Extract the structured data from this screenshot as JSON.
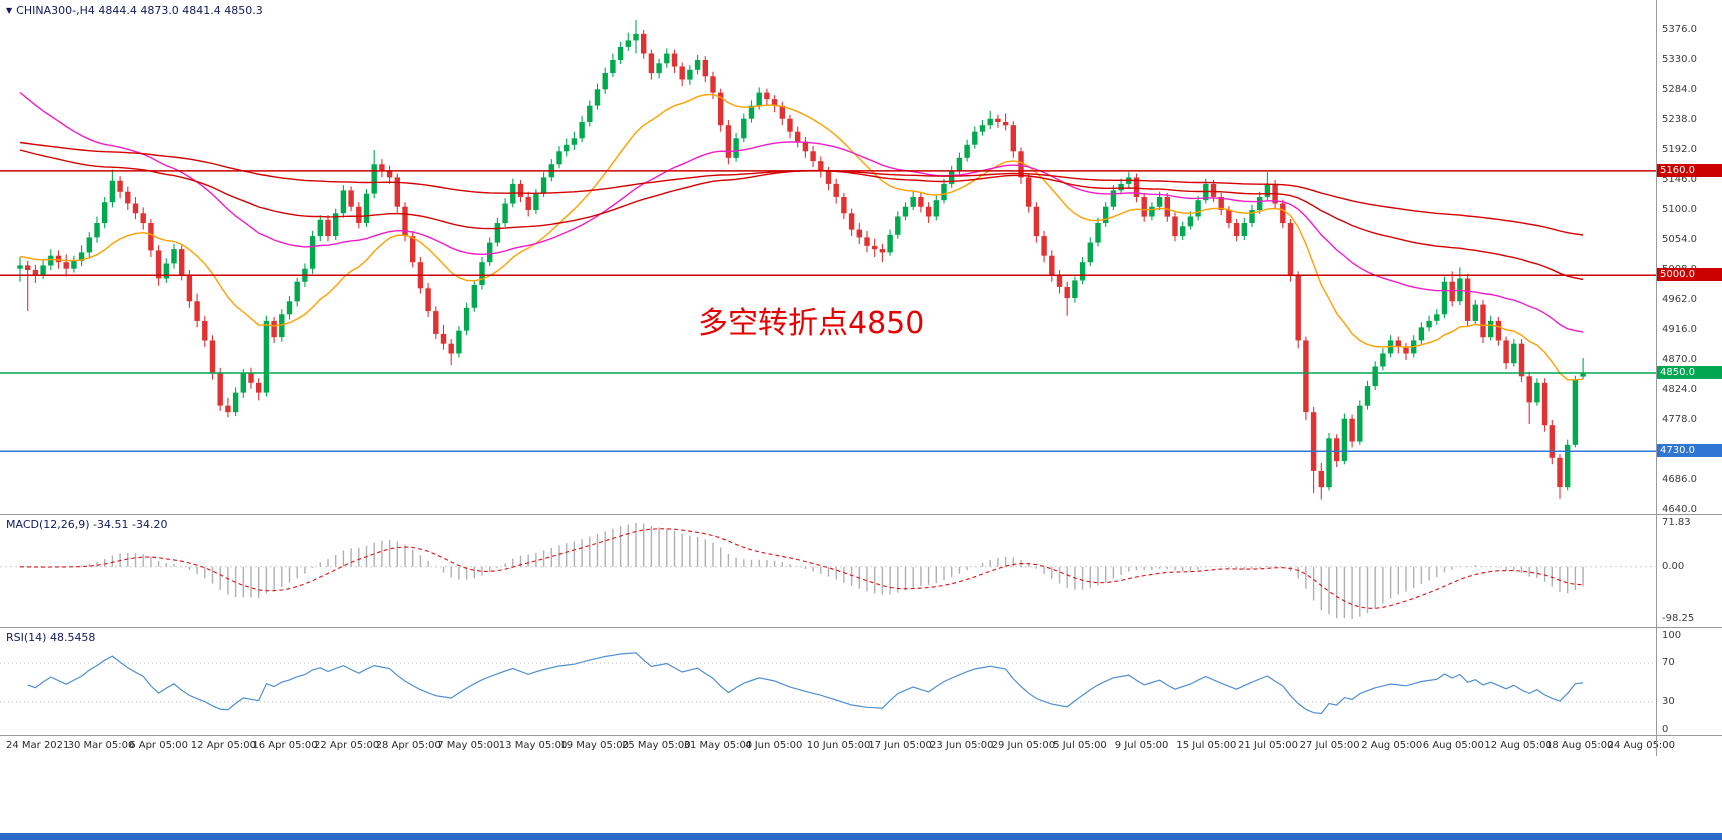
{
  "window": {
    "bottom_bar_color": "#2b6cc9"
  },
  "chart_data": {
    "type": "candlestick",
    "symbol": "CHINA300-",
    "timeframe": "H4",
    "title_line": "CHINA300-,H4 4844.4 4873.0 4841.4 4850.3",
    "current_bar": {
      "open": 4844.4,
      "high": 4873.0,
      "low": 4841.4,
      "close": 4850.3
    },
    "annotation": {
      "text": "多空转折点4850",
      "color": "#e60000"
    },
    "y_axis": {
      "min": 4640,
      "max": 5376,
      "step": 46,
      "labels": [
        "5376.0",
        "5330.0",
        "5284.0",
        "5238.0",
        "5192.0",
        "5146.0",
        "5100.0",
        "5054.0",
        "5008.0",
        "4962.0",
        "4916.0",
        "4870.0",
        "4824.0",
        "4778.0",
        "4732.0",
        "4686.0",
        "4640.0"
      ]
    },
    "x_axis": {
      "labels": [
        "24 Mar 2021",
        "30 Mar 05:00",
        "6 Apr 05:00",
        "12 Apr 05:00",
        "16 Apr 05:00",
        "22 Apr 05:00",
        "28 Apr 05:00",
        "7 May 05:00",
        "13 May 05:00",
        "19 May 05:00",
        "25 May 05:00",
        "31 May 05:00",
        "4 Jun 05:00",
        "10 Jun 05:00",
        "17 Jun 05:00",
        "23 Jun 05:00",
        "29 Jun 05:00",
        "5 Jul 05:00",
        "9 Jul 05:00",
        "15 Jul 05:00",
        "21 Jul 05:00",
        "27 Jul 05:00",
        "2 Aug 05:00",
        "6 Aug 05:00",
        "12 Aug 05:00",
        "18 Aug 05:00",
        "24 Aug 05:00"
      ]
    },
    "hlines": [
      {
        "price": 5160,
        "label": "5160.0",
        "color": "#cc0000"
      },
      {
        "price": 5000,
        "label": "5000.0",
        "color": "#cc0000"
      },
      {
        "price": 4850,
        "label": "4850.0",
        "color": "#00a651"
      },
      {
        "price": 4730,
        "label": "4730.0",
        "color": "#2e75d4"
      }
    ],
    "colors": {
      "up": "#00a94e",
      "down": "#e03232"
    },
    "overlays": [
      {
        "name": "ma-fast-orange",
        "period": 21,
        "seed": 5030,
        "color": "#ffa000"
      },
      {
        "name": "ma-mid-magenta",
        "period": 55,
        "seed": 5290,
        "color": "#f21cc7"
      },
      {
        "name": "ma-slow-red",
        "period": 120,
        "seed": 5195,
        "color": "#d40000"
      },
      {
        "name": "ma-slower-red",
        "period": 250,
        "seed": 5205,
        "color": "#d40000"
      }
    ],
    "macd": {
      "title": "MACD(12,26,9) -34.51 -34.20",
      "fast": 12,
      "slow": 26,
      "signal": 9,
      "main_value": -34.51,
      "signal_value": -34.2,
      "axis_labels": [
        "71.83",
        "0.00",
        "-98.25"
      ],
      "bar_color": "#b0b0b0",
      "signal_color": "#e01010"
    },
    "rsi": {
      "title": "RSI(14) 48.5458",
      "period": 14,
      "value": 48.5458,
      "axis_labels": [
        "100",
        "70",
        "30",
        "0"
      ],
      "levels": [
        70,
        30
      ],
      "line_color": "#4f8fd0"
    },
    "candles": [
      [
        5010,
        5028,
        4990,
        5015
      ],
      [
        5015,
        5022,
        4945,
        5008
      ],
      [
        5008,
        5016,
        4988,
        5000
      ],
      [
        5000,
        5024,
        4994,
        5015
      ],
      [
        5015,
        5040,
        5008,
        5030
      ],
      [
        5030,
        5038,
        5010,
        5020
      ],
      [
        5020,
        5032,
        4998,
        5010
      ],
      [
        5010,
        5030,
        5004,
        5022
      ],
      [
        5022,
        5046,
        5014,
        5035
      ],
      [
        5035,
        5066,
        5028,
        5058
      ],
      [
        5058,
        5090,
        5050,
        5080
      ],
      [
        5080,
        5120,
        5072,
        5112
      ],
      [
        5112,
        5162,
        5104,
        5145
      ],
      [
        5145,
        5152,
        5118,
        5128
      ],
      [
        5128,
        5136,
        5100,
        5110
      ],
      [
        5110,
        5120,
        5086,
        5095
      ],
      [
        5095,
        5104,
        5070,
        5080
      ],
      [
        5080,
        5086,
        5028,
        5038
      ],
      [
        5038,
        5046,
        4984,
        4995
      ],
      [
        4995,
        5026,
        4988,
        5018
      ],
      [
        5018,
        5048,
        5010,
        5040
      ],
      [
        5040,
        5046,
        4992,
        5000
      ],
      [
        5000,
        5008,
        4950,
        4960
      ],
      [
        4960,
        4972,
        4920,
        4930
      ],
      [
        4930,
        4938,
        4890,
        4900
      ],
      [
        4900,
        4908,
        4840,
        4850
      ],
      [
        4850,
        4858,
        4792,
        4800
      ],
      [
        4800,
        4812,
        4782,
        4790
      ],
      [
        4790,
        4828,
        4784,
        4820
      ],
      [
        4820,
        4856,
        4812,
        4850
      ],
      [
        4850,
        4858,
        4826,
        4835
      ],
      [
        4835,
        4842,
        4808,
        4820
      ],
      [
        4820,
        4938,
        4814,
        4930
      ],
      [
        4930,
        4936,
        4896,
        4905
      ],
      [
        4905,
        4948,
        4898,
        4940
      ],
      [
        4940,
        4968,
        4932,
        4960
      ],
      [
        4960,
        4996,
        4952,
        4990
      ],
      [
        4990,
        5018,
        4982,
        5010
      ],
      [
        5010,
        5068,
        5002,
        5060
      ],
      [
        5060,
        5092,
        5052,
        5085
      ],
      [
        5085,
        5092,
        5052,
        5060
      ],
      [
        5060,
        5102,
        5054,
        5095
      ],
      [
        5095,
        5138,
        5088,
        5130
      ],
      [
        5130,
        5136,
        5098,
        5105
      ],
      [
        5105,
        5112,
        5072,
        5080
      ],
      [
        5080,
        5132,
        5074,
        5125
      ],
      [
        5125,
        5192,
        5118,
        5170
      ],
      [
        5170,
        5178,
        5150,
        5160
      ],
      [
        5160,
        5168,
        5140,
        5150
      ],
      [
        5150,
        5156,
        5096,
        5105
      ],
      [
        5105,
        5112,
        5052,
        5060
      ],
      [
        5060,
        5068,
        5012,
        5020
      ],
      [
        5020,
        5028,
        4972,
        4980
      ],
      [
        4980,
        4988,
        4936,
        4945
      ],
      [
        4945,
        4952,
        4902,
        4910
      ],
      [
        4910,
        4924,
        4886,
        4895
      ],
      [
        4895,
        4902,
        4862,
        4880
      ],
      [
        4880,
        4922,
        4874,
        4915
      ],
      [
        4915,
        4958,
        4908,
        4950
      ],
      [
        4950,
        4992,
        4944,
        4985
      ],
      [
        4985,
        5028,
        4978,
        5020
      ],
      [
        5020,
        5058,
        5014,
        5050
      ],
      [
        5050,
        5088,
        5044,
        5080
      ],
      [
        5080,
        5118,
        5074,
        5110
      ],
      [
        5110,
        5148,
        5104,
        5140
      ],
      [
        5140,
        5146,
        5112,
        5120
      ],
      [
        5120,
        5128,
        5090,
        5100
      ],
      [
        5100,
        5132,
        5094,
        5125
      ],
      [
        5125,
        5158,
        5120,
        5150
      ],
      [
        5150,
        5178,
        5144,
        5170
      ],
      [
        5170,
        5198,
        5164,
        5190
      ],
      [
        5190,
        5210,
        5182,
        5200
      ],
      [
        5200,
        5220,
        5192,
        5210
      ],
      [
        5210,
        5244,
        5204,
        5235
      ],
      [
        5235,
        5268,
        5228,
        5260
      ],
      [
        5260,
        5294,
        5254,
        5285
      ],
      [
        5285,
        5318,
        5278,
        5310
      ],
      [
        5310,
        5340,
        5304,
        5330
      ],
      [
        5330,
        5358,
        5324,
        5350
      ],
      [
        5350,
        5372,
        5344,
        5360
      ],
      [
        5360,
        5391,
        5340,
        5370
      ],
      [
        5370,
        5376,
        5332,
        5340
      ],
      [
        5340,
        5346,
        5300,
        5310
      ],
      [
        5310,
        5332,
        5302,
        5325
      ],
      [
        5325,
        5348,
        5318,
        5340
      ],
      [
        5340,
        5346,
        5310,
        5320
      ],
      [
        5320,
        5326,
        5290,
        5300
      ],
      [
        5300,
        5322,
        5292,
        5315
      ],
      [
        5315,
        5338,
        5308,
        5330
      ],
      [
        5330,
        5336,
        5296,
        5305
      ],
      [
        5305,
        5312,
        5270,
        5280
      ],
      [
        5280,
        5286,
        5220,
        5230
      ],
      [
        5230,
        5238,
        5170,
        5180
      ],
      [
        5180,
        5218,
        5174,
        5210
      ],
      [
        5210,
        5248,
        5204,
        5240
      ],
      [
        5240,
        5268,
        5234,
        5260
      ],
      [
        5260,
        5288,
        5254,
        5280
      ],
      [
        5280,
        5286,
        5260,
        5270
      ],
      [
        5270,
        5276,
        5250,
        5260
      ],
      [
        5260,
        5266,
        5230,
        5240
      ],
      [
        5240,
        5246,
        5210,
        5220
      ],
      [
        5220,
        5228,
        5196,
        5205
      ],
      [
        5205,
        5212,
        5180,
        5190
      ],
      [
        5190,
        5198,
        5166,
        5175
      ],
      [
        5175,
        5182,
        5150,
        5160
      ],
      [
        5160,
        5166,
        5130,
        5140
      ],
      [
        5140,
        5148,
        5110,
        5120
      ],
      [
        5120,
        5126,
        5086,
        5095
      ],
      [
        5095,
        5102,
        5060,
        5070
      ],
      [
        5070,
        5080,
        5048,
        5058
      ],
      [
        5058,
        5068,
        5035,
        5045
      ],
      [
        5045,
        5056,
        5028,
        5040
      ],
      [
        5040,
        5048,
        5020,
        5035
      ],
      [
        5035,
        5070,
        5030,
        5062
      ],
      [
        5062,
        5098,
        5056,
        5090
      ],
      [
        5090,
        5112,
        5084,
        5105
      ],
      [
        5105,
        5128,
        5100,
        5120
      ],
      [
        5120,
        5126,
        5096,
        5105
      ],
      [
        5105,
        5112,
        5080,
        5090
      ],
      [
        5090,
        5122,
        5084,
        5115
      ],
      [
        5115,
        5148,
        5110,
        5140
      ],
      [
        5140,
        5168,
        5134,
        5160
      ],
      [
        5160,
        5188,
        5154,
        5180
      ],
      [
        5180,
        5208,
        5174,
        5200
      ],
      [
        5200,
        5228,
        5194,
        5220
      ],
      [
        5220,
        5238,
        5214,
        5230
      ],
      [
        5230,
        5252,
        5224,
        5240
      ],
      [
        5240,
        5246,
        5226,
        5235
      ],
      [
        5235,
        5248,
        5222,
        5230
      ],
      [
        5230,
        5236,
        5180,
        5190
      ],
      [
        5190,
        5196,
        5140,
        5150
      ],
      [
        5150,
        5156,
        5096,
        5105
      ],
      [
        5105,
        5112,
        5050,
        5060
      ],
      [
        5060,
        5068,
        5020,
        5030
      ],
      [
        5030,
        5038,
        4990,
        5000
      ],
      [
        5000,
        5008,
        4972,
        4982
      ],
      [
        4982,
        4990,
        4938,
        4965
      ],
      [
        4965,
        4998,
        4958,
        4992
      ],
      [
        4992,
        5028,
        4986,
        5020
      ],
      [
        5020,
        5058,
        5014,
        5050
      ],
      [
        5050,
        5088,
        5044,
        5080
      ],
      [
        5080,
        5112,
        5074,
        5105
      ],
      [
        5105,
        5138,
        5100,
        5130
      ],
      [
        5130,
        5148,
        5124,
        5140
      ],
      [
        5140,
        5158,
        5134,
        5150
      ],
      [
        5150,
        5156,
        5112,
        5120
      ],
      [
        5120,
        5126,
        5082,
        5090
      ],
      [
        5090,
        5112,
        5084,
        5105
      ],
      [
        5105,
        5128,
        5100,
        5120
      ],
      [
        5120,
        5126,
        5082,
        5090
      ],
      [
        5090,
        5096,
        5052,
        5060
      ],
      [
        5060,
        5082,
        5054,
        5075
      ],
      [
        5075,
        5098,
        5070,
        5090
      ],
      [
        5090,
        5122,
        5084,
        5115
      ],
      [
        5115,
        5148,
        5110,
        5140
      ],
      [
        5140,
        5146,
        5112,
        5120
      ],
      [
        5120,
        5126,
        5092,
        5100
      ],
      [
        5100,
        5106,
        5072,
        5080
      ],
      [
        5080,
        5086,
        5052,
        5060
      ],
      [
        5060,
        5088,
        5054,
        5080
      ],
      [
        5080,
        5108,
        5074,
        5100
      ],
      [
        5100,
        5128,
        5094,
        5120
      ],
      [
        5120,
        5158,
        5114,
        5140
      ],
      [
        5140,
        5146,
        5102,
        5110
      ],
      [
        5110,
        5116,
        5072,
        5080
      ],
      [
        5080,
        5086,
        4990,
        5000
      ],
      [
        5000,
        5006,
        4888,
        4900
      ],
      [
        4900,
        4906,
        4778,
        4790
      ],
      [
        4790,
        4798,
        4666,
        4700
      ],
      [
        4700,
        4712,
        4656,
        4675
      ],
      [
        4675,
        4758,
        4670,
        4750
      ],
      [
        4750,
        4756,
        4706,
        4715
      ],
      [
        4715,
        4788,
        4710,
        4780
      ],
      [
        4780,
        4786,
        4736,
        4745
      ],
      [
        4745,
        4808,
        4740,
        4800
      ],
      [
        4800,
        4838,
        4794,
        4830
      ],
      [
        4830,
        4868,
        4824,
        4860
      ],
      [
        4860,
        4888,
        4854,
        4880
      ],
      [
        4880,
        4908,
        4874,
        4900
      ],
      [
        4900,
        4906,
        4880,
        4890
      ],
      [
        4890,
        4896,
        4870,
        4880
      ],
      [
        4880,
        4908,
        4874,
        4900
      ],
      [
        4900,
        4928,
        4894,
        4920
      ],
      [
        4920,
        4938,
        4914,
        4930
      ],
      [
        4930,
        4948,
        4924,
        4940
      ],
      [
        4940,
        4998,
        4934,
        4990
      ],
      [
        4990,
        5006,
        4952,
        4960
      ],
      [
        4960,
        5012,
        4954,
        4995
      ],
      [
        4995,
        5002,
        4922,
        4930
      ],
      [
        4930,
        4962,
        4924,
        4955
      ],
      [
        4955,
        4962,
        4896,
        4905
      ],
      [
        4905,
        4938,
        4900,
        4930
      ],
      [
        4930,
        4936,
        4892,
        4900
      ],
      [
        4900,
        4906,
        4856,
        4865
      ],
      [
        4865,
        4902,
        4860,
        4895
      ],
      [
        4895,
        4902,
        4836,
        4845
      ],
      [
        4845,
        4852,
        4772,
        4805
      ],
      [
        4805,
        4842,
        4800,
        4835
      ],
      [
        4835,
        4842,
        4760,
        4770
      ],
      [
        4770,
        4778,
        4710,
        4720
      ],
      [
        4720,
        4726,
        4657,
        4675
      ],
      [
        4675,
        4748,
        4670,
        4740
      ],
      [
        4740,
        4846,
        4736,
        4840
      ],
      [
        4844.4,
        4873.0,
        4841.4,
        4850.3
      ]
    ]
  }
}
